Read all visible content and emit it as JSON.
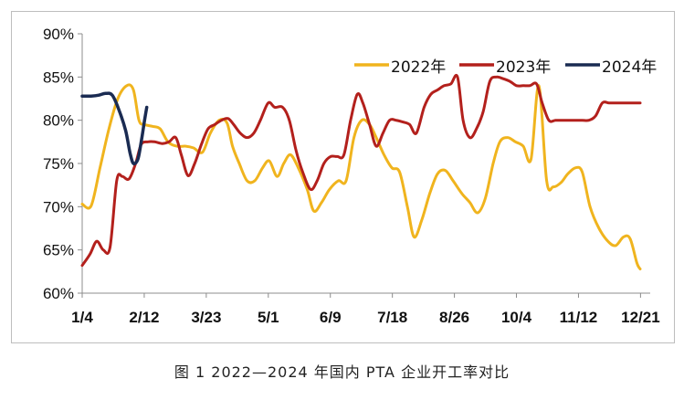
{
  "caption": "图 1  2022—2024 年国内 PTA 企业开工率对比",
  "chart_data": {
    "type": "line",
    "y_unit": "%",
    "ylim": [
      60,
      90
    ],
    "y_ticks": [
      "90%",
      "85%",
      "80%",
      "75%",
      "70%",
      "65%",
      "60%"
    ],
    "x_tick_labels": [
      "1/4",
      "2/12",
      "3/23",
      "5/1",
      "6/9",
      "7/18",
      "8/26",
      "10/4",
      "11/12",
      "12/21"
    ],
    "x_tick_index": [
      0,
      5.57,
      11.14,
      16.71,
      22.28,
      27.85,
      33.42,
      38.99,
      44.56,
      50.13
    ],
    "x_max_index": 51,
    "legend_position": "top-right",
    "grid": false,
    "series": [
      {
        "name": "2022年",
        "color": "#f0b41e",
        "points": [
          [
            0,
            70.3
          ],
          [
            0.8,
            70.1
          ],
          [
            1.6,
            74.5
          ],
          [
            2.4,
            79
          ],
          [
            3.2,
            82.5
          ],
          [
            4,
            84
          ],
          [
            4.6,
            83.5
          ],
          [
            5.1,
            80
          ],
          [
            5.6,
            79.5
          ],
          [
            6.3,
            79.3
          ],
          [
            7,
            79
          ],
          [
            7.7,
            77.5
          ],
          [
            8.5,
            77
          ],
          [
            9.3,
            77
          ],
          [
            10,
            76.8
          ],
          [
            10.8,
            76.3
          ],
          [
            11.5,
            78.5
          ],
          [
            12.3,
            80
          ],
          [
            13,
            79.7
          ],
          [
            13.5,
            77
          ],
          [
            14.1,
            75
          ],
          [
            14.8,
            73
          ],
          [
            15.5,
            73
          ],
          [
            16.2,
            74.5
          ],
          [
            16.8,
            75.3
          ],
          [
            17.5,
            73.5
          ],
          [
            18.1,
            75
          ],
          [
            18.7,
            76
          ],
          [
            19.4,
            74.5
          ],
          [
            20.2,
            72
          ],
          [
            20.8,
            69.5
          ],
          [
            21.5,
            70.5
          ],
          [
            22.2,
            72
          ],
          [
            23,
            73
          ],
          [
            23.7,
            73
          ],
          [
            24.4,
            78
          ],
          [
            25.1,
            80
          ],
          [
            25.8,
            79.5
          ],
          [
            26.4,
            78
          ],
          [
            27.1,
            76
          ],
          [
            27.8,
            74.5
          ],
          [
            28.5,
            74
          ],
          [
            29.2,
            70
          ],
          [
            29.8,
            66.5
          ],
          [
            30.5,
            68.5
          ],
          [
            31.2,
            71.5
          ],
          [
            31.9,
            73.8
          ],
          [
            32.6,
            74.2
          ],
          [
            33.3,
            73
          ],
          [
            34.1,
            71.5
          ],
          [
            34.8,
            70.5
          ],
          [
            35.5,
            69.3
          ],
          [
            36.2,
            71
          ],
          [
            36.9,
            75
          ],
          [
            37.5,
            77.5
          ],
          [
            38.2,
            78
          ],
          [
            38.9,
            77.5
          ],
          [
            39.6,
            77
          ],
          [
            40.3,
            75.5
          ],
          [
            41,
            84
          ],
          [
            41.7,
            73
          ],
          [
            42.3,
            72.3
          ],
          [
            43,
            72.8
          ],
          [
            43.6,
            73.8
          ],
          [
            44.3,
            74.5
          ],
          [
            44.9,
            74
          ],
          [
            45.6,
            70
          ],
          [
            46.4,
            67.5
          ],
          [
            47.2,
            66
          ],
          [
            47.9,
            65.5
          ],
          [
            48.6,
            66.5
          ],
          [
            49.2,
            66.3
          ],
          [
            49.8,
            63.5
          ],
          [
            50.1,
            62.8
          ]
        ]
      },
      {
        "name": "2023年",
        "color": "#b3201c",
        "points": [
          [
            0,
            63.2
          ],
          [
            0.7,
            64.5
          ],
          [
            1.3,
            66
          ],
          [
            1.9,
            65
          ],
          [
            2.5,
            65.3
          ],
          [
            3.1,
            73
          ],
          [
            3.6,
            73.5
          ],
          [
            4.2,
            73.2
          ],
          [
            4.8,
            75
          ],
          [
            5.3,
            77.2
          ],
          [
            5.9,
            77.5
          ],
          [
            6.5,
            77.5
          ],
          [
            7.2,
            77.3
          ],
          [
            7.8,
            77.5
          ],
          [
            8.4,
            78
          ],
          [
            8.9,
            76
          ],
          [
            9.5,
            73.6
          ],
          [
            10.1,
            75
          ],
          [
            10.7,
            77.2
          ],
          [
            11.3,
            79
          ],
          [
            11.9,
            79.5
          ],
          [
            12.5,
            80
          ],
          [
            13.1,
            80.2
          ],
          [
            13.6,
            79.5
          ],
          [
            14.2,
            78.5
          ],
          [
            14.8,
            78
          ],
          [
            15.4,
            78.5
          ],
          [
            16,
            80
          ],
          [
            16.7,
            82
          ],
          [
            17.3,
            81.5
          ],
          [
            18,
            81.5
          ],
          [
            18.6,
            80
          ],
          [
            19.2,
            76.5
          ],
          [
            19.8,
            74
          ],
          [
            20.5,
            72
          ],
          [
            21.1,
            73
          ],
          [
            21.7,
            75
          ],
          [
            22.3,
            75.8
          ],
          [
            22.9,
            75.8
          ],
          [
            23.5,
            76
          ],
          [
            24.1,
            80
          ],
          [
            24.7,
            83
          ],
          [
            25.2,
            82
          ],
          [
            25.8,
            79.5
          ],
          [
            26.4,
            77
          ],
          [
            27,
            78.5
          ],
          [
            27.6,
            80
          ],
          [
            28.2,
            80
          ],
          [
            28.8,
            79.8
          ],
          [
            29.4,
            79.5
          ],
          [
            30,
            78.5
          ],
          [
            30.7,
            81.5
          ],
          [
            31.3,
            83
          ],
          [
            31.9,
            83.5
          ],
          [
            32.5,
            84
          ],
          [
            33.1,
            84.2
          ],
          [
            33.7,
            85
          ],
          [
            34.2,
            80
          ],
          [
            34.8,
            78
          ],
          [
            35.4,
            79
          ],
          [
            36,
            81
          ],
          [
            36.6,
            84.5
          ],
          [
            37.2,
            85
          ],
          [
            37.8,
            84.8
          ],
          [
            38.4,
            84.5
          ],
          [
            39,
            84
          ],
          [
            39.6,
            84
          ],
          [
            40.2,
            84
          ],
          [
            40.8,
            84.2
          ],
          [
            41.3,
            82
          ],
          [
            41.9,
            80
          ],
          [
            42.5,
            80
          ],
          [
            43.1,
            80
          ],
          [
            43.7,
            80
          ],
          [
            44.3,
            80
          ],
          [
            44.9,
            80
          ],
          [
            45.5,
            80
          ],
          [
            46.1,
            80.5
          ],
          [
            46.7,
            82
          ],
          [
            47.3,
            82
          ],
          [
            47.9,
            82
          ],
          [
            48.5,
            82
          ],
          [
            49.1,
            82
          ],
          [
            49.7,
            82
          ],
          [
            50.1,
            82
          ]
        ]
      },
      {
        "name": "2024年",
        "color": "#1a2b52",
        "points": [
          [
            0,
            82.8
          ],
          [
            0.8,
            82.8
          ],
          [
            1.5,
            82.9
          ],
          [
            2.1,
            83.1
          ],
          [
            2.7,
            82.9
          ],
          [
            3.3,
            81.2
          ],
          [
            3.9,
            78.8
          ],
          [
            4.3,
            76.2
          ],
          [
            4.6,
            75
          ],
          [
            5,
            75.5
          ],
          [
            5.3,
            77.5
          ],
          [
            5.6,
            80
          ],
          [
            5.8,
            81.5
          ]
        ]
      }
    ]
  }
}
